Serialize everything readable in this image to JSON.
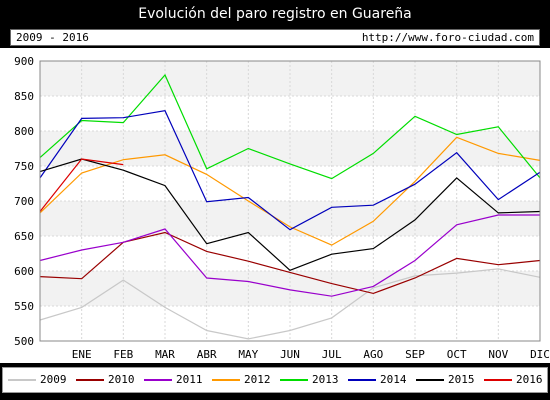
{
  "header": {
    "title": "Evolución del paro registro en Guareña",
    "range": "2009 - 2016",
    "source": "http://www.foro-ciudad.com"
  },
  "chart_data": {
    "type": "line",
    "title": "Evolución del paro registro en Guareña",
    "categories": [
      "",
      "ENE",
      "FEB",
      "MAR",
      "ABR",
      "MAY",
      "JUN",
      "JUL",
      "AGO",
      "SEP",
      "OCT",
      "NOV",
      "DIC"
    ],
    "ylim": [
      500,
      900
    ],
    "yticks": [
      500,
      550,
      600,
      650,
      700,
      750,
      800,
      850,
      900
    ],
    "grid": true,
    "legend_position": "bottom",
    "series": [
      {
        "name": "2009",
        "color": "#c8c8c8",
        "values": [
          530,
          548,
          587,
          548,
          515,
          503,
          515,
          533,
          576,
          593,
          597,
          603,
          591
        ]
      },
      {
        "name": "2010",
        "color": "#990000",
        "values": [
          592,
          589,
          641,
          655,
          628,
          614,
          598,
          582,
          568,
          590,
          618,
          609,
          615
        ]
      },
      {
        "name": "2011",
        "color": "#9900cc",
        "values": [
          615,
          630,
          641,
          660,
          590,
          585,
          573,
          564,
          578,
          615,
          666,
          680,
          680
        ]
      },
      {
        "name": "2012",
        "color": "#ff9900",
        "values": [
          683,
          740,
          759,
          766,
          738,
          700,
          663,
          637,
          671,
          728,
          791,
          768,
          758
        ]
      },
      {
        "name": "2013",
        "color": "#00dd00",
        "values": [
          762,
          815,
          812,
          880,
          746,
          775,
          753,
          732,
          768,
          821,
          795,
          806,
          733
        ]
      },
      {
        "name": "2014",
        "color": "#0000bb",
        "values": [
          733,
          818,
          819,
          829,
          699,
          705,
          659,
          691,
          694,
          724,
          769,
          702,
          741
        ]
      },
      {
        "name": "2015",
        "color": "#000000",
        "values": [
          742,
          760,
          744,
          722,
          639,
          655,
          601,
          624,
          632,
          673,
          733,
          683,
          685
        ]
      },
      {
        "name": "2016",
        "color": "#dd0000",
        "values": [
          685,
          760,
          752,
          null,
          null,
          null,
          null,
          null,
          null,
          null,
          null,
          null,
          null
        ]
      }
    ]
  }
}
